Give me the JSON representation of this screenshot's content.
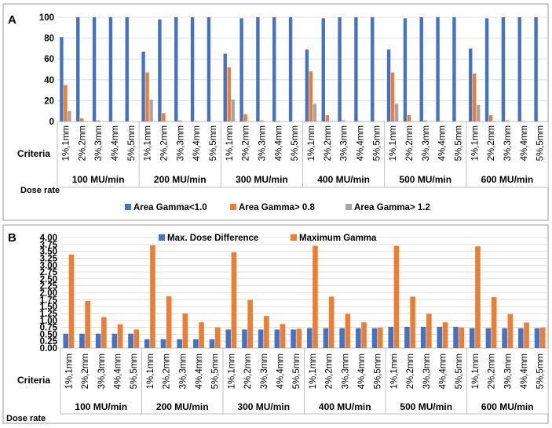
{
  "colors": {
    "blue": "#4472C4",
    "orange": "#ED7D31",
    "gray": "#A5A5A5",
    "frame": "#9a9a9a",
    "grid": "#d9d9d9"
  },
  "labels": {
    "criteria": "Criteria",
    "dose_rate": "Dose rate"
  },
  "chart_data": [
    {
      "panel": "A",
      "type": "bar",
      "ylim": [
        0,
        100
      ],
      "yticks": [
        "0",
        "20",
        "40",
        "60",
        "80",
        "100"
      ],
      "yticks_values": [
        0,
        20,
        40,
        60,
        80,
        100
      ],
      "groups": [
        "100 MU/min",
        "200 MU/min",
        "300 MU/min",
        "400 MU/min",
        "500 MU/min",
        "600 MU/min"
      ],
      "criteria": [
        "1%,1mm",
        "2%,2mm",
        "3%,3mm",
        "4%,4mm",
        "5%,5mm"
      ],
      "legend_position": "bottom",
      "grid": true,
      "series": [
        {
          "name": "Area Gamma<1.0",
          "color": "#4472C4",
          "values": [
            81,
            100,
            100,
            100,
            100,
            67,
            98,
            100,
            100,
            100,
            65,
            99,
            100,
            100,
            100,
            69,
            99,
            100,
            100,
            100,
            69,
            99,
            100,
            100,
            100,
            70,
            99,
            100,
            100,
            100
          ]
        },
        {
          "name": "Area Gamma> 0.8",
          "color": "#ED7D31",
          "values": [
            35,
            3,
            1,
            0.5,
            0,
            47,
            8,
            1,
            0.5,
            0,
            52,
            7,
            1,
            0.5,
            0,
            48,
            6,
            1,
            0.5,
            0,
            47,
            6,
            1,
            0.5,
            0,
            46,
            6,
            1,
            0.5,
            0
          ]
        },
        {
          "name": "Area Gamma> 1.2",
          "color": "#A5A5A5",
          "values": [
            10,
            0.5,
            0,
            0,
            0,
            21,
            0.5,
            0,
            0,
            0,
            21,
            0.5,
            0,
            0,
            0,
            17,
            0.5,
            0,
            0,
            0,
            17,
            0.5,
            0,
            0,
            0,
            16,
            0.5,
            0,
            0,
            0
          ]
        }
      ]
    },
    {
      "panel": "B",
      "type": "bar",
      "ylim": [
        0,
        4
      ],
      "yticks": [
        "0.00",
        "0.25",
        "0.50",
        "0.75",
        "1.00",
        "1.25",
        "1.50",
        "1.75",
        "2.00",
        "2.25",
        "2.50",
        "2.75",
        "3.00",
        "3.25",
        "3.50",
        "3.75",
        "4.00"
      ],
      "yticks_values": [
        0,
        0.25,
        0.5,
        0.75,
        1,
        1.25,
        1.5,
        1.75,
        2,
        2.25,
        2.5,
        2.75,
        3,
        3.25,
        3.5,
        3.75,
        4
      ],
      "groups": [
        "100 MU/min",
        "200 MU/min",
        "300 MU/min",
        "400 MU/min",
        "500 MU/min",
        "600 MU/min"
      ],
      "criteria": [
        "1%,1mm",
        "2%,2mm",
        "3%,3mm",
        "4%,4mm",
        "5%,5mm"
      ],
      "legend_position": "top",
      "grid": true,
      "series": [
        {
          "name": "Max. Dose Difference",
          "color": "#4472C4",
          "values": [
            0.52,
            0.52,
            0.52,
            0.52,
            0.52,
            0.32,
            0.32,
            0.32,
            0.32,
            0.32,
            0.67,
            0.67,
            0.67,
            0.67,
            0.67,
            0.72,
            0.72,
            0.72,
            0.72,
            0.72,
            0.77,
            0.77,
            0.77,
            0.77,
            0.77,
            0.72,
            0.72,
            0.72,
            0.72,
            0.72
          ]
        },
        {
          "name": "Maximum Gamma",
          "color": "#ED7D31",
          "values": [
            3.38,
            1.7,
            1.12,
            0.86,
            0.67,
            3.72,
            1.87,
            1.25,
            0.93,
            0.75,
            3.47,
            1.74,
            1.16,
            0.87,
            0.7,
            3.7,
            1.86,
            1.24,
            0.93,
            0.74,
            3.7,
            1.86,
            1.24,
            0.93,
            0.74,
            3.68,
            1.84,
            1.23,
            0.92,
            0.74
          ]
        }
      ]
    }
  ]
}
